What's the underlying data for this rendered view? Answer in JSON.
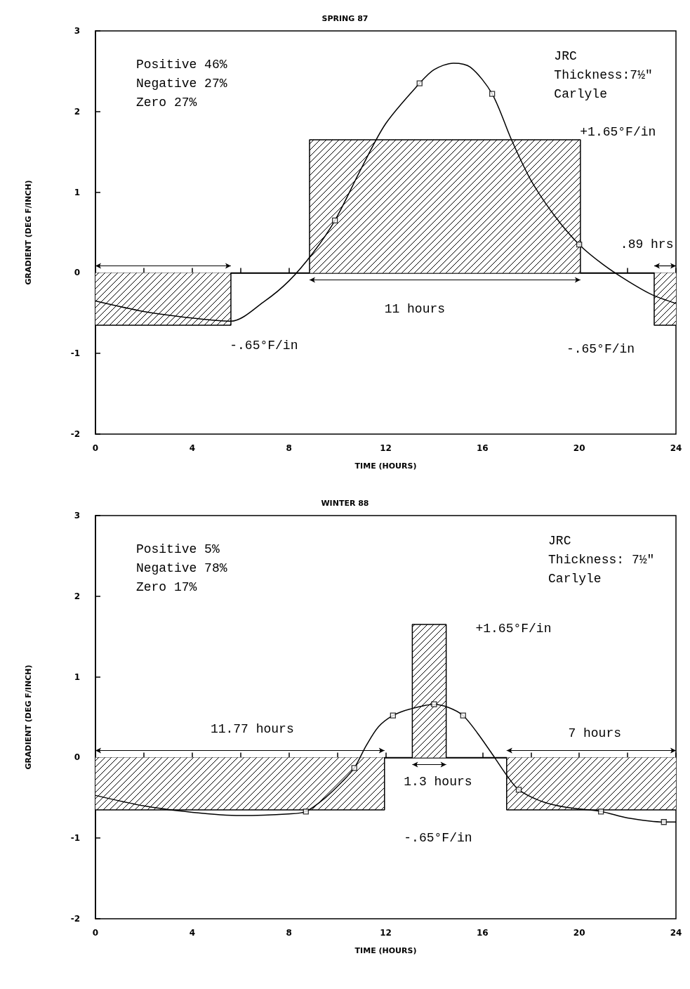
{
  "chart_data": [
    {
      "type": "line",
      "title": "SPRING 87",
      "xlabel": "TIME (HOURS)",
      "ylabel": "GRADIENT (DEG F/INCH)",
      "xlim": [
        0,
        24
      ],
      "xticks": [
        0,
        {
          "value": 2,
          "label": null
        },
        4,
        {
          "value": 6,
          "label": null
        },
        8,
        {
          "value": 10,
          "label": null
        },
        12,
        {
          "value": 14,
          "label": null
        },
        16,
        {
          "value": 18,
          "label": null
        },
        20,
        {
          "value": 22,
          "label": null
        },
        24
      ],
      "ylim": [
        -2,
        3
      ],
      "yticks": [
        -2,
        -1,
        0,
        1,
        2,
        3
      ],
      "series": [
        {
          "type": "area",
          "color": "#000000",
          "x": [
            0,
            5.6,
            5.6,
            8.85,
            8.85,
            20.05,
            20.05,
            23.1,
            23.1,
            24
          ],
          "values": [
            -0.65,
            -0.65,
            0,
            0,
            1.65,
            1.65,
            0,
            0,
            -0.65,
            -0.65
          ]
        },
        {
          "color": "#000000",
          "x": [
            0,
            2,
            4,
            5.6,
            7,
            8,
            9,
            9.9,
            11,
            12,
            13.4,
            14,
            14.8,
            15.5,
            16.4,
            17.2,
            18,
            19,
            20,
            21,
            22,
            23,
            24
          ],
          "values": [
            -0.35,
            -0.48,
            -0.56,
            -0.6,
            -0.35,
            -0.1,
            0.25,
            0.65,
            1.3,
            1.85,
            2.35,
            2.52,
            2.6,
            2.55,
            2.22,
            1.65,
            1.15,
            0.7,
            0.35,
            0.1,
            -0.1,
            -0.27,
            -0.38
          ]
        },
        {
          "type": "scatter",
          "color": "#000000",
          "marker": "square",
          "x": [
            9.9,
            13.4,
            16.4,
            20
          ],
          "values": [
            0.65,
            2.35,
            2.22,
            0.35
          ]
        }
      ],
      "annotations": [
        "Positive 46%\nNegative 27%\nZero 27%",
        "JRC\nThickness:7½\"\nCarlyle",
        "+1.65°F/in",
        "-.65°F/in",
        "-.65°F/in",
        ".89 hrs",
        "11 hours"
      ]
    },
    {
      "type": "line",
      "title": "WINTER 88",
      "xlabel": "TIME (HOURS)",
      "ylabel": "GRADIENT (DEG F/INCH)",
      "xlim": [
        0,
        24
      ],
      "xticks": [
        0,
        {
          "value": 2,
          "label": null
        },
        4,
        {
          "value": 6,
          "label": null
        },
        8,
        {
          "value": 10,
          "label": null
        },
        12,
        {
          "value": 14,
          "label": null
        },
        16,
        {
          "value": 18,
          "label": null
        },
        20,
        {
          "value": 22,
          "label": null
        },
        24
      ],
      "ylim": [
        -2,
        3
      ],
      "yticks": [
        -2,
        -1,
        0,
        1,
        2,
        3
      ],
      "series": [
        {
          "type": "area",
          "color": "#000000",
          "x": [
            0,
            11.95,
            11.95,
            13.1,
            13.1,
            14.5,
            14.5,
            17,
            17,
            24
          ],
          "values": [
            -0.65,
            -0.65,
            0,
            0,
            1.65,
            1.65,
            0,
            0,
            -0.65,
            -0.65
          ]
        },
        {
          "color": "#000000",
          "x": [
            0,
            2,
            4,
            6,
            8,
            8.7,
            9.5,
            10.2,
            10.7,
            11.2,
            11.7,
            12.3,
            13,
            14,
            14.6,
            15.2,
            15.8,
            16.5,
            17,
            17.5,
            18.5,
            19.5,
            20.9,
            22,
            23.5,
            24
          ],
          "values": [
            -0.47,
            -0.6,
            -0.68,
            -0.72,
            -0.7,
            -0.67,
            -0.5,
            -0.3,
            -0.13,
            0.15,
            0.38,
            0.52,
            0.6,
            0.66,
            0.62,
            0.52,
            0.3,
            0,
            -0.22,
            -0.4,
            -0.55,
            -0.62,
            -0.67,
            -0.75,
            -0.8,
            -0.8
          ]
        },
        {
          "type": "scatter",
          "color": "#000000",
          "marker": "square",
          "x": [
            8.7,
            10.7,
            12.3,
            14,
            15.2,
            17.5,
            20.9,
            23.5
          ],
          "values": [
            -0.67,
            -0.13,
            0.52,
            0.66,
            0.52,
            -0.4,
            -0.67,
            -0.8
          ]
        }
      ],
      "annotations": [
        "Positive 5%\nNegative 78%\nZero 17%",
        "JRC\nThickness: 7½\"\nCarlyle",
        "+1.65°F/in",
        "11.77 hours",
        "7 hours",
        "1.3 hours",
        "-.65°F/in"
      ]
    }
  ]
}
